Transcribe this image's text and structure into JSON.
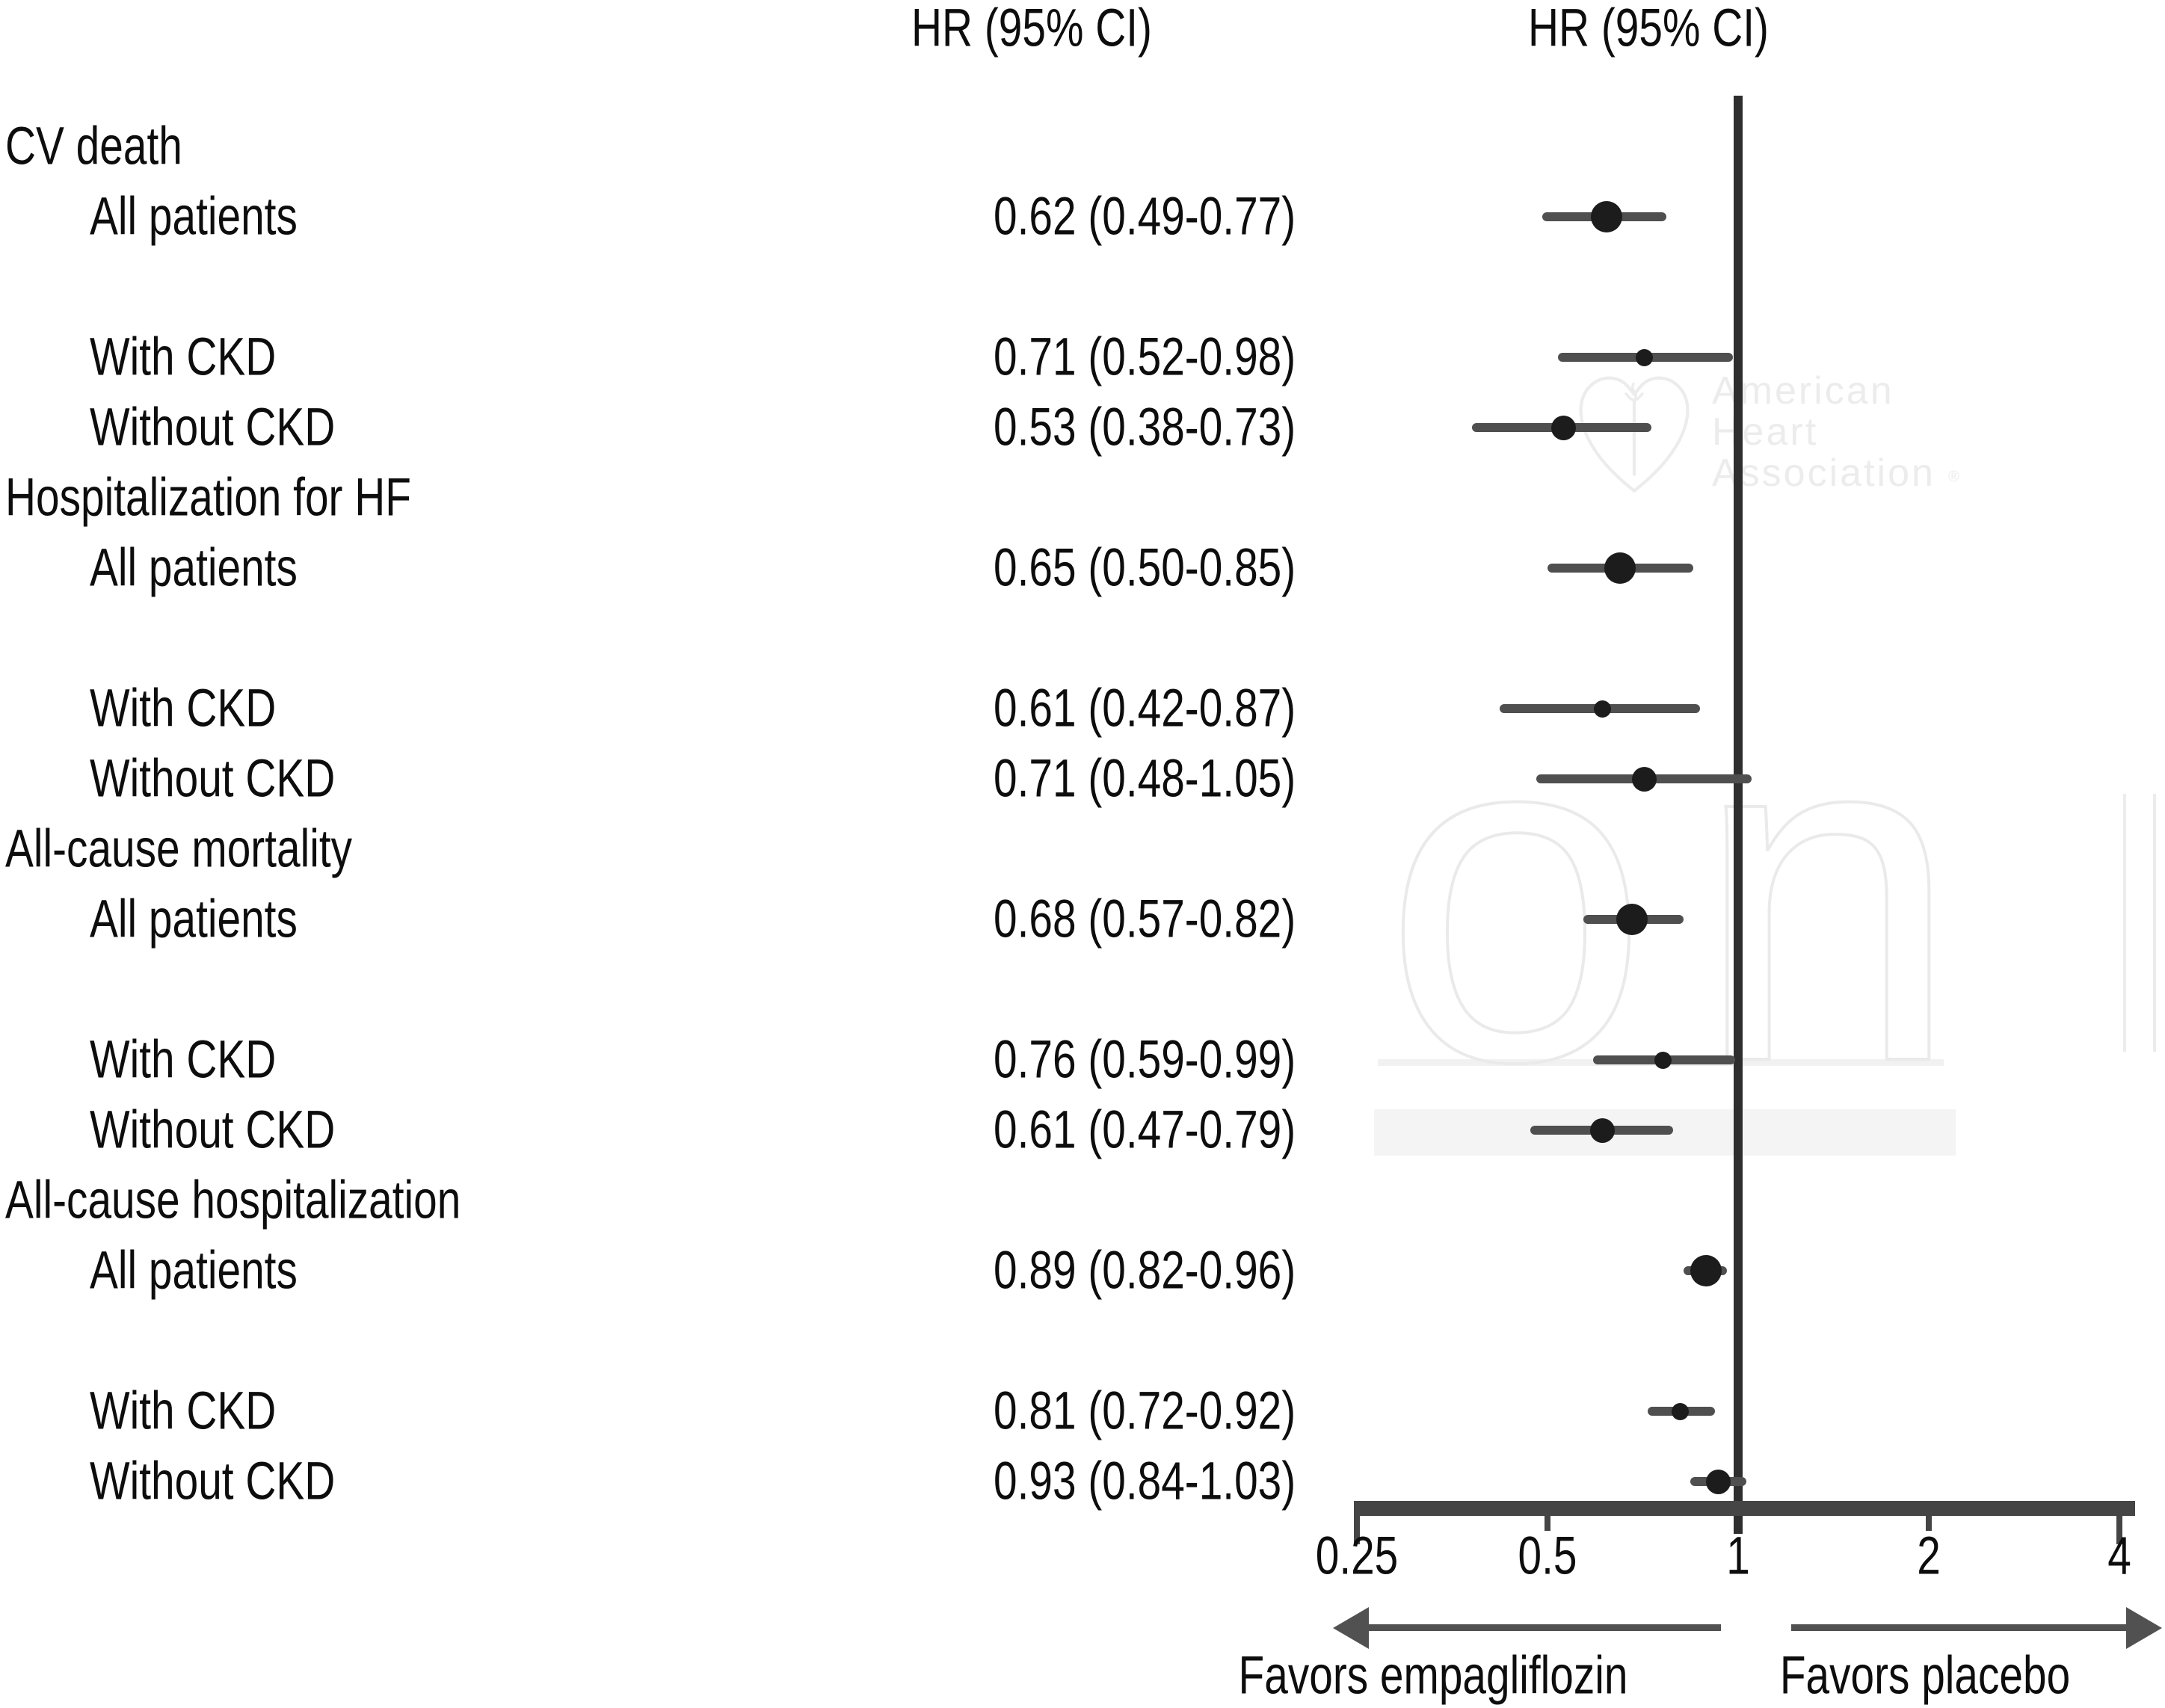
{
  "chart_data": {
    "type": "forest",
    "title": "",
    "col_headers": {
      "left": "HR (95% CI)",
      "right": "HR (95% CI)"
    },
    "x_axis": {
      "scale": "log2",
      "xlim": [
        0.25,
        4
      ],
      "ticks": [
        0.25,
        0.5,
        1,
        2,
        4
      ],
      "tick_labels": [
        "0.25",
        "0.5",
        "1",
        "2",
        "4"
      ],
      "reference_line": 1,
      "grid": false
    },
    "direction_labels": {
      "left": "Favors empagliflozin",
      "right": "Favors placebo"
    },
    "groups": [
      {
        "label": "CV death",
        "items": [
          {
            "label": "All patients",
            "hr_text": "0.62 (0.49-0.77)",
            "est": 0.62,
            "lo": 0.49,
            "hi": 0.77,
            "marker_size": "large"
          },
          {
            "label": "With CKD",
            "hr_text": "0.71 (0.52-0.98)",
            "est": 0.71,
            "lo": 0.52,
            "hi": 0.98,
            "marker_size": "small"
          },
          {
            "label": "Without CKD",
            "hr_text": "0.53 (0.38-0.73)",
            "est": 0.53,
            "lo": 0.38,
            "hi": 0.73,
            "marker_size": "medium"
          }
        ]
      },
      {
        "label": "Hospitalization for HF",
        "items": [
          {
            "label": "All patients",
            "hr_text": "0.65 (0.50-0.85)",
            "est": 0.65,
            "lo": 0.5,
            "hi": 0.85,
            "marker_size": "large"
          },
          {
            "label": "With CKD",
            "hr_text": "0.61 (0.42-0.87)",
            "est": 0.61,
            "lo": 0.42,
            "hi": 0.87,
            "marker_size": "small"
          },
          {
            "label": "Without CKD",
            "hr_text": "0.71 (0.48-1.05)",
            "est": 0.71,
            "lo": 0.48,
            "hi": 1.05,
            "marker_size": "medium"
          }
        ]
      },
      {
        "label": "All-cause mortality",
        "items": [
          {
            "label": "All patients",
            "hr_text": "0.68 (0.57-0.82)",
            "est": 0.68,
            "lo": 0.57,
            "hi": 0.82,
            "marker_size": "large"
          },
          {
            "label": "With CKD",
            "hr_text": "0.76 (0.59-0.99)",
            "est": 0.76,
            "lo": 0.59,
            "hi": 0.99,
            "marker_size": "small"
          },
          {
            "label": "Without CKD",
            "hr_text": "0.61 (0.47-0.79)",
            "est": 0.61,
            "lo": 0.47,
            "hi": 0.79,
            "marker_size": "medium"
          }
        ]
      },
      {
        "label": "All-cause hospitalization",
        "items": [
          {
            "label": "All patients",
            "hr_text": "0.89 (0.82-0.96)",
            "est": 0.89,
            "lo": 0.82,
            "hi": 0.96,
            "marker_size": "large"
          },
          {
            "label": "With CKD",
            "hr_text": "0.81 (0.72-0.92)",
            "est": 0.81,
            "lo": 0.72,
            "hi": 0.92,
            "marker_size": "small"
          },
          {
            "label": "Without CKD",
            "hr_text": "0.93 (0.84-1.03)",
            "est": 0.93,
            "lo": 0.84,
            "hi": 1.03,
            "marker_size": "medium"
          }
        ]
      }
    ]
  },
  "watermark": {
    "big_text": "on",
    "logo_lines": [
      "American",
      "Heart",
      "Association"
    ],
    "registered_mark": "®"
  },
  "colors": {
    "text": "#0d0d0d",
    "axis": "#454545",
    "reference_line": "#2e2e2e",
    "ci_line": "#4f4f4f",
    "marker": "#1c1c1c",
    "arrow": "#515151",
    "watermark": "#ececec",
    "band": "#f4f4f4"
  }
}
